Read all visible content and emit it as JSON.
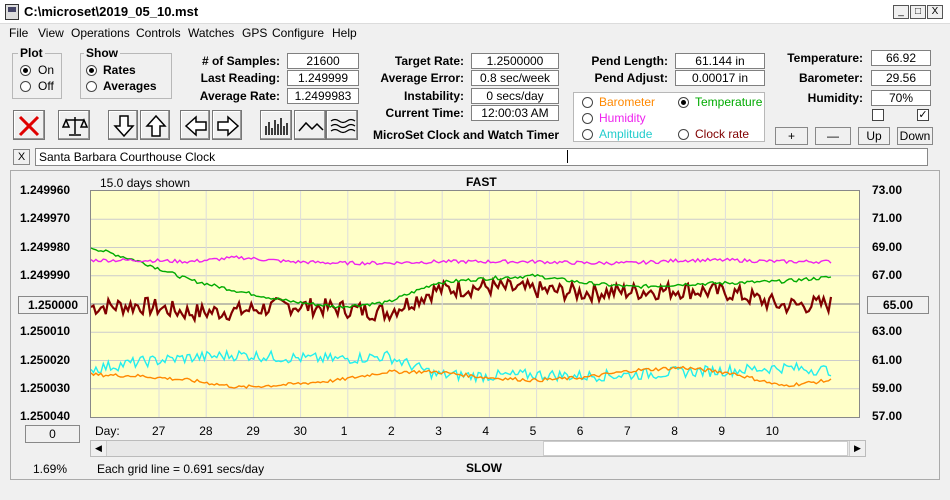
{
  "window": {
    "title": "C:\\microset\\2019_05_10.mst",
    "min": "_",
    "max": "□",
    "close": "X"
  },
  "menu": [
    "File",
    "View",
    "Operations",
    "Controls",
    "Watches",
    "GPS",
    "Configure",
    "Help"
  ],
  "plot_group": {
    "title": "Plot",
    "on": "On",
    "off": "Off"
  },
  "show_group": {
    "title": "Show",
    "rates": "Rates",
    "averages": "Averages"
  },
  "stats": {
    "samples_label": "# of Samples:",
    "samples": "21600",
    "last_label": "Last Reading:",
    "last": "1.249999",
    "avg_label": "Average Rate:",
    "avg": "1.2499983",
    "target_label": "Target Rate:",
    "target": "1.2500000",
    "err_label": "Average Error:",
    "err": "0.8 sec/week",
    "inst_label": "Instability:",
    "inst": "0 secs/day",
    "time_label": "Current Time:",
    "time": "12:00:03 AM",
    "plen_label": "Pend Length:",
    "plen": "61.144 in",
    "padj_label": "Pend Adjust:",
    "padj": "0.00017 in",
    "temp_label": "Temperature:",
    "temp": "66.92",
    "baro_label": "Barometer:",
    "baro": "29.56",
    "hum_label": "Humidity:",
    "hum": "70%"
  },
  "app_name": "MicroSet Clock and Watch Timer",
  "series_select": {
    "barometer": "Barometer",
    "temperature": "Temperature",
    "humidity": "Humidity",
    "amplitude": "Amplitude",
    "clock_rate": "Clock rate"
  },
  "adjust_buttons": {
    "plus": "+",
    "minus": "—",
    "up": "Up",
    "down": "Down"
  },
  "watch_name": "Santa Barbara Courthouse Clock",
  "watch_close": "X",
  "chart": {
    "days_shown": "15.0 days shown",
    "top_label": "FAST",
    "bottom_label": "SLOW",
    "left_center_button": "1.250000",
    "right_center_button": "65.00",
    "bottom_left_button": "0",
    "day_label": "Day:",
    "grid_note": "Each grid line = 0.691 secs/day",
    "percent": "1.69%"
  },
  "colors": {
    "plot_bg": "#ffffc8",
    "rate": "#800000",
    "temperature": "#00aa00",
    "humidity": "#ee22ee",
    "amplitude": "#22eeee",
    "barometer": "#ff8800"
  },
  "chart_data": {
    "type": "line",
    "x_ticks": [
      "27",
      "28",
      "29",
      "30",
      "1",
      "2",
      "3",
      "4",
      "5",
      "6",
      "7",
      "8",
      "9",
      "10"
    ],
    "y_left_ticks": [
      "1.249960",
      "1.249970",
      "1.249980",
      "1.249990",
      "",
      "1.250010",
      "1.250020",
      "1.250030",
      "1.250040"
    ],
    "y_right_ticks": [
      "73.00",
      "71.00",
      "69.00",
      "67.00",
      "",
      "63.00",
      "61.00",
      "59.00",
      "57.00"
    ],
    "ylim_right": [
      57,
      73
    ],
    "x": [
      0,
      1,
      2,
      3,
      4,
      5,
      6,
      7,
      8,
      9,
      10,
      11,
      12,
      13,
      14,
      15
    ],
    "series": [
      {
        "key": "rate",
        "values": [
          64.8,
          64.9,
          64.4,
          64.5,
          64.9,
          64.7,
          64.4,
          66.0,
          66.2,
          66.0,
          65.8,
          65.9,
          66.0,
          65.8,
          64.9,
          65.0
        ]
      },
      {
        "key": "temperature",
        "values": [
          69.0,
          68.0,
          66.7,
          65.9,
          65.2,
          64.8,
          65.1,
          66.5,
          66.8,
          67.0,
          66.5,
          66.2,
          66.4,
          66.5,
          66.6,
          66.9
        ]
      },
      {
        "key": "humidity",
        "values": [
          68.1,
          68.1,
          68.0,
          68.3,
          68.0,
          67.9,
          67.9,
          68.0,
          68.0,
          68.0,
          67.9,
          67.9,
          68.1,
          68.1,
          68.0,
          68.0
        ]
      },
      {
        "key": "amplitude",
        "values": [
          60.4,
          60.9,
          61.2,
          61.4,
          61.2,
          61.1,
          61.3,
          60.0,
          59.9,
          60.0,
          59.9,
          60.0,
          60.2,
          60.3,
          60.5,
          60.3
        ]
      },
      {
        "key": "barometer",
        "values": [
          60.0,
          59.9,
          59.6,
          59.1,
          59.3,
          59.6,
          60.2,
          60.2,
          59.8,
          59.6,
          59.8,
          60.3,
          60.5,
          60.1,
          59.2,
          59.6
        ]
      }
    ]
  }
}
